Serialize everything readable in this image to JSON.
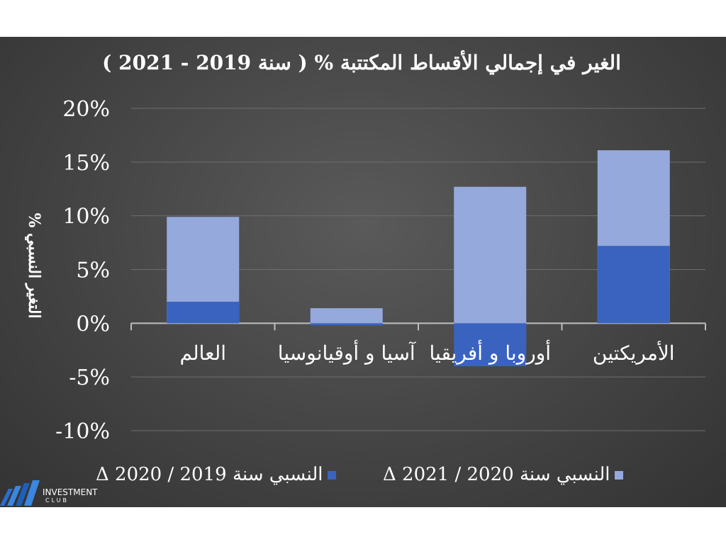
{
  "chart_data": {
    "type": "bar",
    "title": "الغير في إجمالي الأقساط المكتتبة % ( سنة 2019 - 2021 )",
    "ylabel": "التغير النسبي %",
    "ylim": [
      -10,
      20
    ],
    "yticks": [
      "20%",
      "15%",
      "10%",
      "5%",
      "0%",
      "-5%",
      "-10%"
    ],
    "ytick_values": [
      20,
      15,
      10,
      5,
      0,
      -5,
      -10
    ],
    "categories": [
      "العالم",
      "آسيا و أوقيانوسيا",
      "أوروبا و أفريقيا",
      "الأمريكتين"
    ],
    "series": [
      {
        "name": "النسبي سنة 2019 / 2020 Δ",
        "values": [
          2.0,
          -0.2,
          -4.0,
          7.2
        ],
        "color": "#3a63c0"
      },
      {
        "name": "النسبي سنة 2020 / 2021 Δ",
        "values": [
          9.9,
          1.4,
          12.7,
          16.1
        ],
        "color": "#95a9dc"
      }
    ],
    "grid": true,
    "legend": "bottom"
  },
  "logo": {
    "line1": "INVESTMENT",
    "line2": "CLUB"
  }
}
